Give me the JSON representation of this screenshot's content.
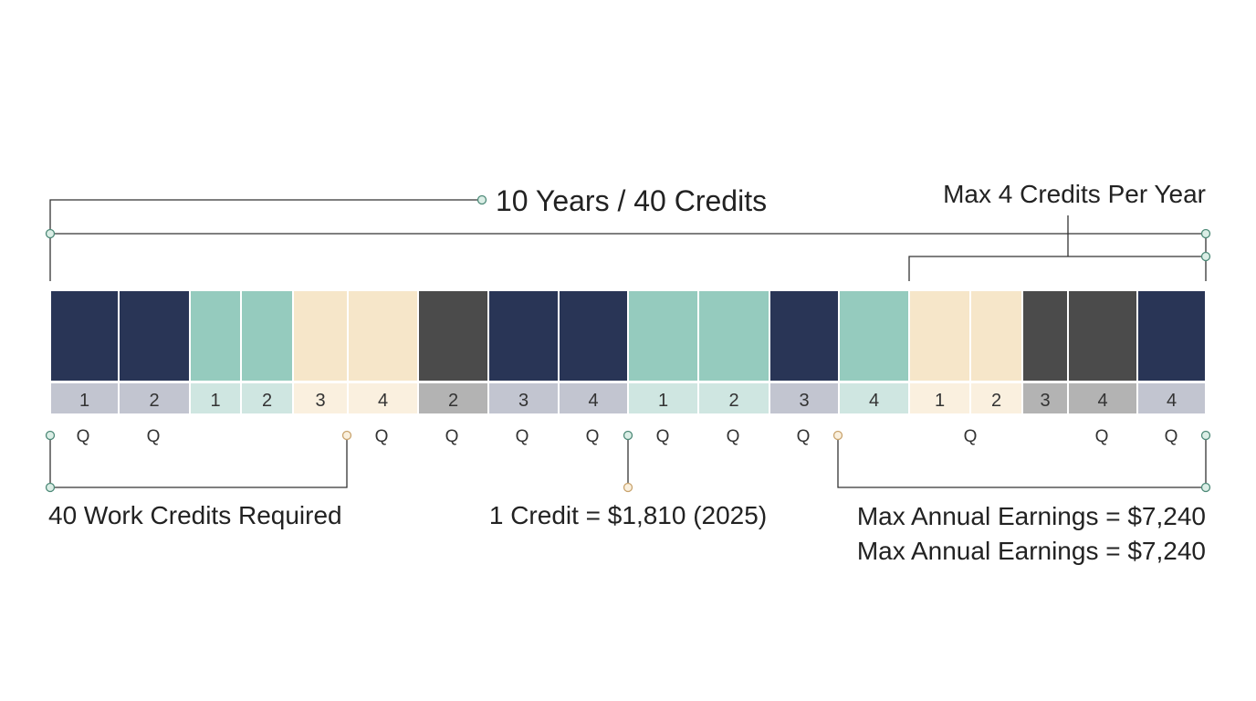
{
  "labels": {
    "top_title": "10 Years / 40 Credits",
    "max_credits": "Max 4 Credits Per Year",
    "required": "40 Work Credits Required",
    "credit_value": "1 Credit = $1,810 (2025)",
    "max_earnings_1": "Max Annual Earnings = $7,240",
    "max_earnings_2": "Max Annual Earnings = $7,240"
  },
  "colors": {
    "navy": "#293556",
    "teal": "#95cbbe",
    "cream": "#f6e6c9",
    "charcoal": "#4b4b4b",
    "connector": "#333333",
    "dot_green": "#6b9e8c",
    "dot_cream": "#e0b884"
  },
  "blocks": [
    {
      "color": "navy",
      "number": "1"
    },
    {
      "color": "navy",
      "number": "2"
    },
    {
      "color": "teal",
      "number": "1"
    },
    {
      "color": "teal",
      "number": "2"
    },
    {
      "color": "cream",
      "number": "3"
    },
    {
      "color": "cream",
      "number": "4"
    },
    {
      "color": "charcoal",
      "number": "2"
    },
    {
      "color": "navy",
      "number": "3"
    },
    {
      "color": "navy",
      "number": "4"
    },
    {
      "color": "teal",
      "number": "1"
    },
    {
      "color": "teal",
      "number": "2"
    },
    {
      "color": "navy",
      "number": "3"
    },
    {
      "color": "teal",
      "number": "4"
    },
    {
      "color": "cream",
      "number": "1"
    },
    {
      "color": "cream",
      "number": "2"
    },
    {
      "color": "charcoal",
      "number": "3"
    },
    {
      "color": "charcoal",
      "number": "4"
    },
    {
      "color": "navy",
      "number": "4"
    }
  ],
  "q_marks": [
    "Q",
    "Q",
    "Q",
    "Q",
    "Q",
    "Q",
    "Q",
    "Q",
    "Q",
    "Q",
    "Q",
    "Q",
    "Q"
  ]
}
